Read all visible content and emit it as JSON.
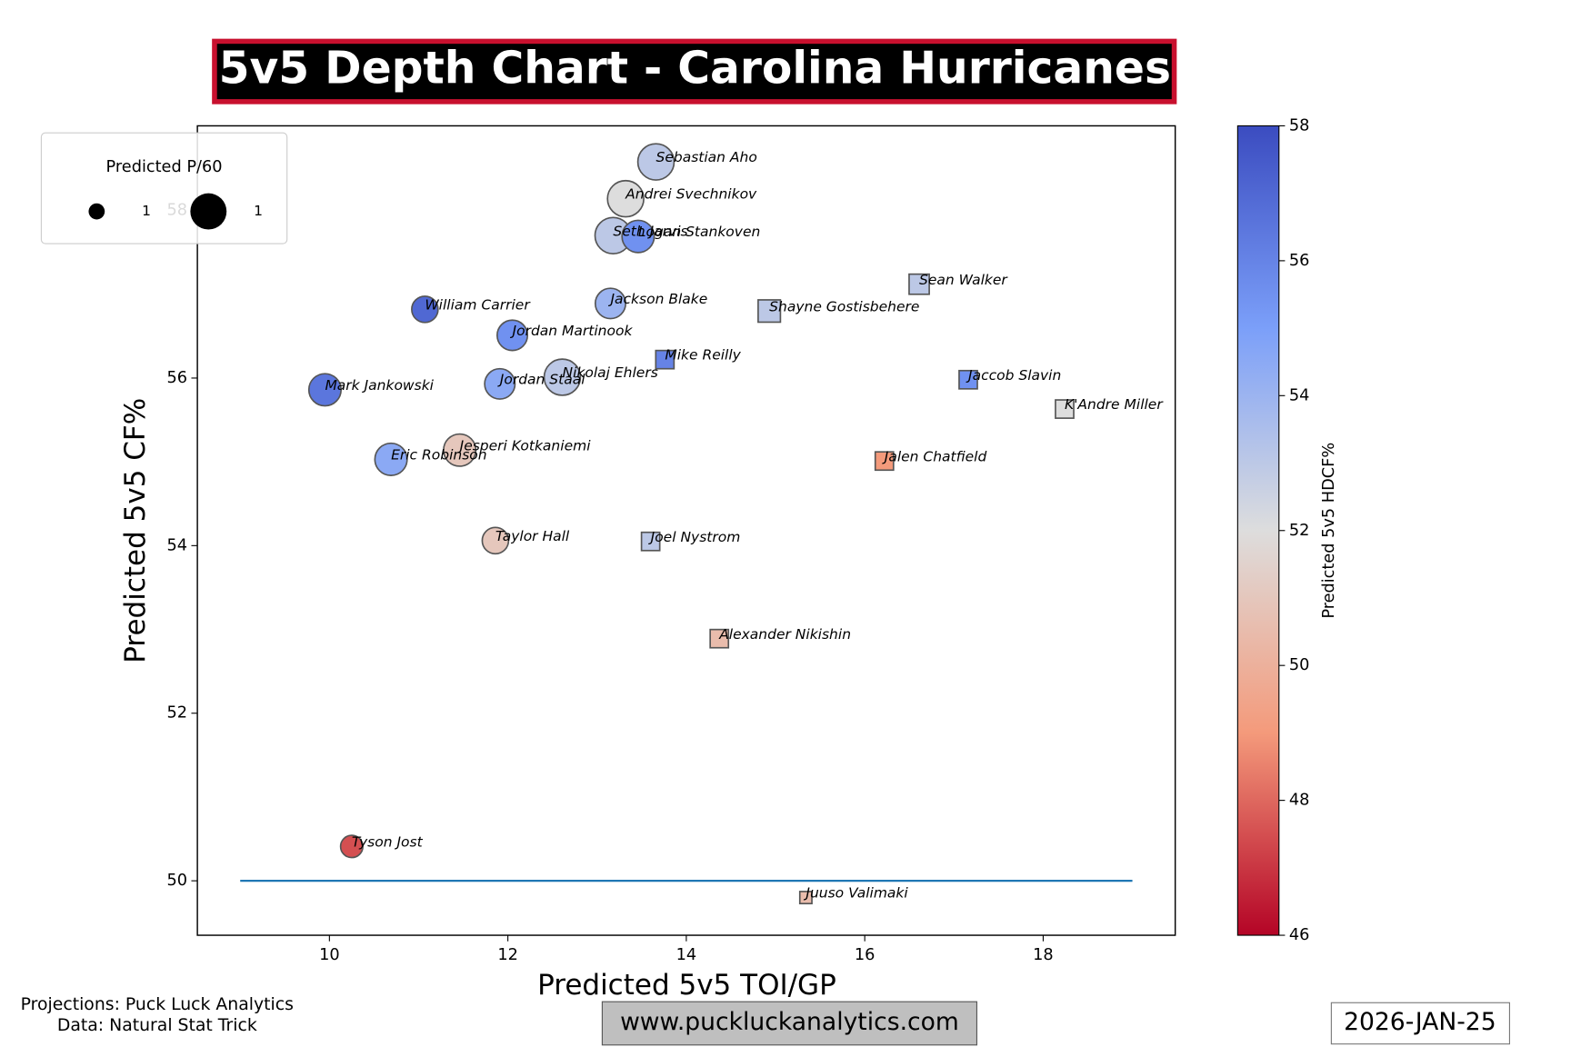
{
  "chart_data": {
    "type": "scatter",
    "title": "5v5 Depth Chart - Carolina Hurricanes",
    "x_label": "Predicted 5v5 TOI/GP",
    "y_label": "Predicted 5v5 CF%",
    "colorbar_label": "Predicted 5v5 HDCF%",
    "size_legend_title": "Predicted P/60",
    "size_legend": [
      {
        "value": 0.6,
        "label": "1"
      },
      {
        "value": 1.35,
        "label": "1"
      }
    ],
    "labels": [
      "Sebastian Aho",
      "Andrei Svechnikov",
      "Seth Jarvis",
      "Logan Stankoven",
      "William Carrier",
      "Jackson Blake",
      "Jordan Martinook",
      "Nikolaj Ehlers",
      "Jordan Staal",
      "Mark Jankowski",
      "Jesperi Kotkaniemi",
      "Eric Robinson",
      "Taylor Hall",
      "Tyson Jost",
      "Sean Walker",
      "Shayne Gostisbehere",
      "Mike Reilly",
      "Jaccob Slavin",
      "K'Andre Miller",
      "Jalen Chatfield",
      "Joel Nystrom",
      "Alexander Nikishin",
      "Juuso Valimaki"
    ],
    "markers": [
      "o",
      "o",
      "o",
      "o",
      "o",
      "o",
      "o",
      "o",
      "o",
      "o",
      "o",
      "o",
      "o",
      "o",
      "s",
      "s",
      "s",
      "s",
      "s",
      "s",
      "s",
      "s",
      "s"
    ],
    "x": [
      13.66,
      13.32,
      13.18,
      13.46,
      11.07,
      13.15,
      12.05,
      12.61,
      11.91,
      9.95,
      11.46,
      10.69,
      11.86,
      10.25,
      16.61,
      14.93,
      13.76,
      17.16,
      18.24,
      16.22,
      13.6,
      14.37,
      15.34
    ],
    "values": [
      58.58,
      58.14,
      57.7,
      57.69,
      56.82,
      56.89,
      56.51,
      56.01,
      55.93,
      55.86,
      55.14,
      55.03,
      54.06,
      50.41,
      57.12,
      56.8,
      56.22,
      55.98,
      55.63,
      55.01,
      54.05,
      52.89,
      49.8
    ],
    "sizes": [
      1.35,
      1.35,
      1.35,
      1.2,
      0.98,
      1.13,
      1.13,
      1.35,
      1.13,
      1.2,
      1.2,
      1.2,
      0.98,
      0.83,
      0.75,
      0.83,
      0.68,
      0.68,
      0.68,
      0.68,
      0.68,
      0.68,
      0.45
    ],
    "color_values": [
      53,
      52,
      53,
      55.5,
      57,
      54,
      55.5,
      53,
      54.5,
      56.5,
      51,
      54.5,
      51,
      47.5,
      53,
      53,
      56,
      55.5,
      52,
      49,
      53,
      50.5,
      50.5
    ],
    "colormap": [
      "#b40426",
      "#f49a7b",
      "#dddddd",
      "#7b9ff9",
      "#3b4cc0"
    ],
    "clim": [
      46,
      58
    ],
    "cticks": [
      46,
      48,
      50,
      52,
      54,
      56,
      58
    ],
    "xlim": [
      8.52,
      19.48
    ],
    "xticks": [
      10,
      12,
      14,
      16,
      18
    ],
    "ylim": [
      49.35,
      59.01
    ],
    "yticks": [
      50,
      52,
      54,
      56,
      58
    ],
    "reference_line": {
      "y": 50,
      "x": [
        9,
        19
      ],
      "color": "#1f77b4"
    },
    "footer_left": [
      "Projections: Puck Luck Analytics",
      "Data: Natural Stat Trick"
    ],
    "website": "www.puckluckanalytics.com",
    "date": "2026-JAN-25"
  }
}
